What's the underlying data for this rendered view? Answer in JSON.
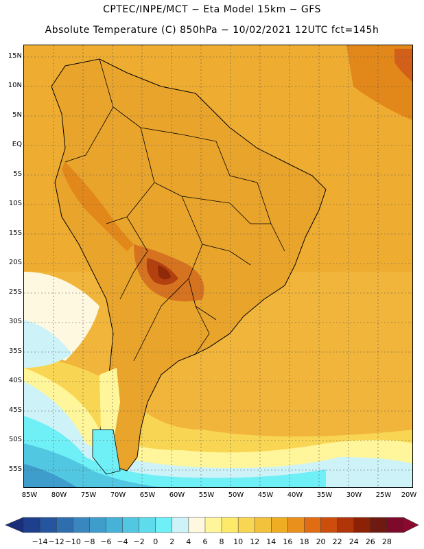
{
  "header": {
    "line1": "CPTEC/INPE/MCT  −   Eta Model 15km  −  GFS",
    "line2": "Absolute Temperature (C) 850hPa − 10/02/2021 12UTC fct=145h"
  },
  "axes": {
    "lat_labels": [
      "15N",
      "10N",
      "5N",
      "EQ",
      "5S",
      "10S",
      "15S",
      "20S",
      "25S",
      "30S",
      "35S",
      "40S",
      "45S",
      "50S",
      "55S"
    ],
    "lon_labels": [
      "85W",
      "80W",
      "75W",
      "70W",
      "65W",
      "60W",
      "55W",
      "50W",
      "45W",
      "40W",
      "35W",
      "30W",
      "25W",
      "20W"
    ]
  },
  "colorbar": {
    "labels": [
      "−14",
      "−12",
      "−10",
      "−8",
      "−6",
      "−4",
      "−2",
      "0",
      "2",
      "4",
      "6",
      "8",
      "10",
      "12",
      "14",
      "16",
      "18",
      "20",
      "22",
      "24",
      "26",
      "28"
    ],
    "colors": [
      "#1e3f8c",
      "#25559e",
      "#2e6dae",
      "#3a86bf",
      "#3f9dcc",
      "#47b2d8",
      "#52c7e2",
      "#5edcec",
      "#6ff0f6",
      "#cdf3f8",
      "#fff8e0",
      "#fff59a",
      "#fde96a",
      "#f8d653",
      "#f3c23d",
      "#efad23",
      "#e88f1c",
      "#e06d13",
      "#cc4d0c",
      "#b03509",
      "#8d2106",
      "#6e1a10",
      "#7d0a2a"
    ],
    "left_arrow_color": "#1a2f7a",
    "right_arrow_color": "#8a0a2e"
  },
  "map": {
    "ocean_color": "#f0b53a",
    "land_color": "#e9a42c"
  }
}
